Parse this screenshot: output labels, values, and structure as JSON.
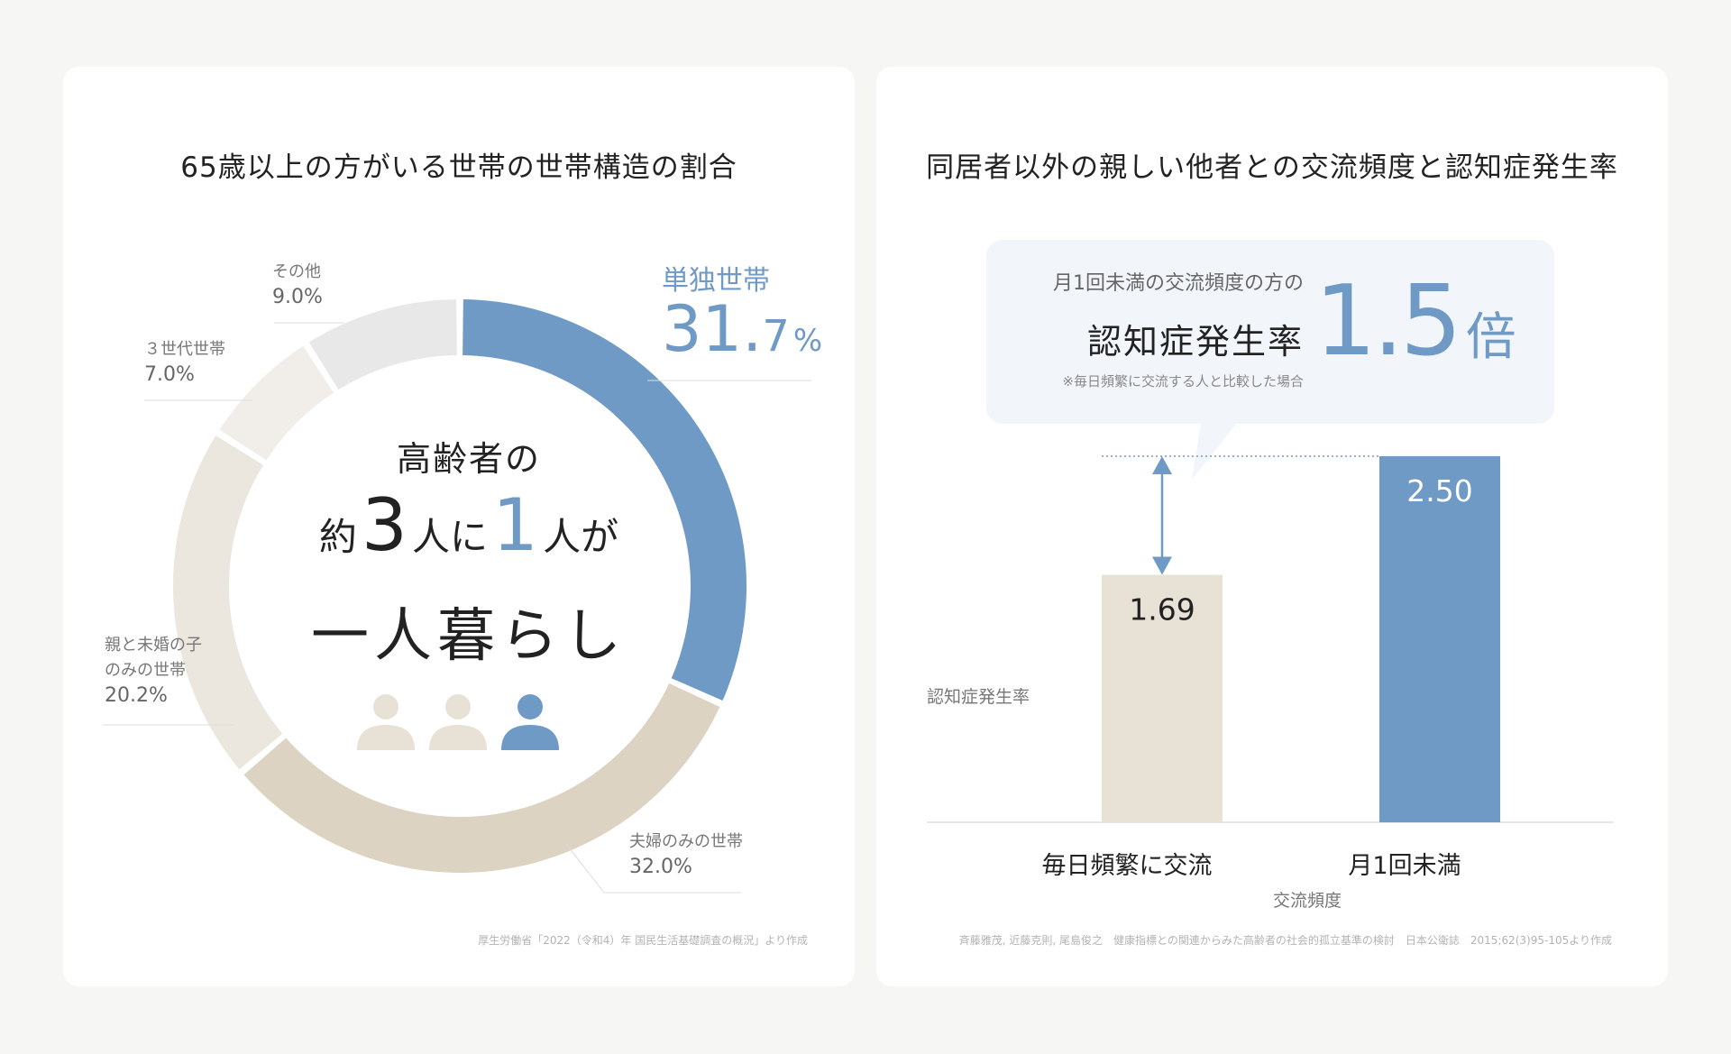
{
  "left_card": {
    "title": "65歳以上の方がいる世帯の世帯構造の割合",
    "center": {
      "line1": "高齢者の",
      "pre": "約",
      "num1": "3",
      "mid": "人に",
      "num2": "1",
      "post": "人が",
      "line3": "一人暮らし"
    },
    "highlight": {
      "label": "単独世帯",
      "value_int": "31.",
      "value_dec": "7",
      "value_unit": "%"
    },
    "labels": [
      {
        "name": "夫婦のみの世帯",
        "value": "32.0%"
      },
      {
        "name": "親と未婚の子",
        "name2": "のみの世帯",
        "value": "20.2%"
      },
      {
        "name": "３世代世帯",
        "value": "7.0%"
      },
      {
        "name": "その他",
        "value": "9.0%"
      }
    ],
    "source": "厚生労働省「2022（令和4）年 国民生活基礎調査の概況」より作成"
  },
  "right_card": {
    "title": "同居者以外の親しい他者との交流頻度と認知症発生率",
    "callout": {
      "line1": "月1回未満の交流頻度の方の",
      "line2": "認知症発生率",
      "note": "※毎日頻繁に交流する人と比較した場合",
      "big_value": "1.5",
      "big_unit": "倍"
    },
    "source": "斉藤雅茂, 近藤克則, 尾島俊之　健康指標との関連からみた高齢者の社会的孤立基準の検討　日本公衛誌　2015;62(3)95-105より作成"
  },
  "chart_data": [
    {
      "type": "pie",
      "title": "65歳以上の方がいる世帯の世帯構造の割合",
      "categories": [
        "単独世帯",
        "夫婦のみの世帯",
        "親と未婚の子のみの世帯",
        "３世代世帯",
        "その他"
      ],
      "values": [
        31.7,
        32.0,
        20.2,
        7.0,
        9.0
      ],
      "colors": [
        "#6f9ac6",
        "#dcd3c2",
        "#ebe6de",
        "#f1eee9",
        "#e8e8e8"
      ],
      "unit": "%"
    },
    {
      "type": "bar",
      "title": "同居者以外の親しい他者との交流頻度と認知症発生率",
      "categories": [
        "毎日頻繁に交流",
        "月1回未満"
      ],
      "values": [
        1.69,
        2.5
      ],
      "value_labels": [
        "1.69",
        "2.50"
      ],
      "colors": [
        "#e8e1d6",
        "#6f9ac6"
      ],
      "xlabel": "交流頻度",
      "ylabel": "認知症発生率",
      "ylim": [
        0,
        2.5
      ]
    }
  ]
}
